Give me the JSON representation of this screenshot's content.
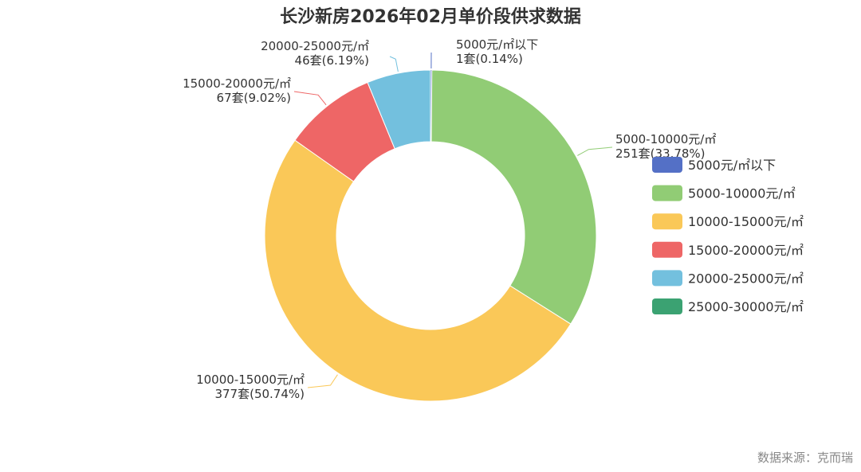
{
  "chart_data": {
    "type": "pie",
    "variant": "donut",
    "title": "长沙新房2026年02月单价段供求数据",
    "unit": "套",
    "categories": [
      "5000元/㎡以下",
      "5000-10000元/㎡",
      "10000-15000元/㎡",
      "15000-20000元/㎡",
      "20000-25000元/㎡",
      "25000-30000元/㎡"
    ],
    "values": [
      1,
      251,
      377,
      67,
      46,
      0
    ],
    "percentages": [
      "0.14%",
      "33.78%",
      "50.74%",
      "9.02%",
      "6.19%",
      "0%"
    ],
    "slice_labels": [
      {
        "line1": "5000元/㎡以下",
        "line2": "1套(0.14%)"
      },
      {
        "line1": "5000-10000元/㎡",
        "line2": "251套(33.78%)"
      },
      {
        "line1": "10000-15000元/㎡",
        "line2": "377套(50.74%)"
      },
      {
        "line1": "15000-20000元/㎡",
        "line2": "67套(9.02%)"
      },
      {
        "line1": "20000-25000元/㎡",
        "line2": "46套(6.19%)"
      }
    ],
    "colors": [
      "#5470c6",
      "#91cc75",
      "#fac858",
      "#ee6666",
      "#73c0de",
      "#3ba272"
    ],
    "legend": {
      "position": "right",
      "entries": [
        "5000元/㎡以下",
        "5000-10000元/㎡",
        "10000-15000元/㎡",
        "15000-20000元/㎡",
        "20000-25000元/㎡",
        "25000-30000元/㎡"
      ]
    }
  },
  "source": "数据来源：克而瑞"
}
